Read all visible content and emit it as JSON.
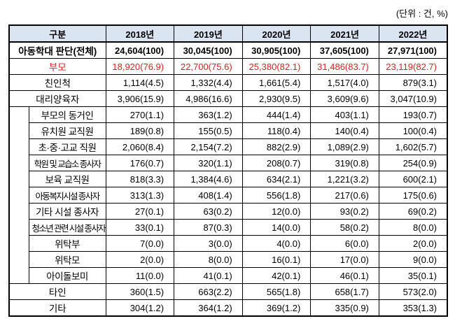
{
  "unit_note": "(단위 : 건, %)",
  "table": {
    "header": [
      "구분",
      "2018년",
      "2019년",
      "2020년",
      "2021년",
      "2022년"
    ],
    "rows": [
      {
        "label": "아동학대 판단(전체)",
        "cells": [
          "24,604(100)",
          "30,045(100)",
          "30,905(100)",
          "37,605(100)",
          "27,971(100)"
        ]
      },
      {
        "label": "부모",
        "cells": [
          "18,920(76.9)",
          "22,700(75.6)",
          "25,380(82.1)",
          "31,486(83.7)",
          "23,119(82.7)"
        ]
      },
      {
        "label": "친인척",
        "cells": [
          "1,114(4.5)",
          "1,332(4.4)",
          "1,661(5.4)",
          "1,517(4.0)",
          "879(3.1)"
        ]
      },
      {
        "label": "대리양육자",
        "cells": [
          "3,906(15.9)",
          "4,986(16.6)",
          "2,930(9.5)",
          "3,609(9.6)",
          "3,047(10.9)"
        ],
        "children": [
          {
            "label": "부모의 동거인",
            "cells": [
              "270(1.1)",
              "363(1.2)",
              "444(1.4)",
              "403(1.1)",
              "193(0.7)"
            ]
          },
          {
            "label": "유치원 교직원",
            "cells": [
              "189(0.8)",
              "155(0.5)",
              "118(0.4)",
              "140(0.4)",
              "100(0.4)"
            ]
          },
          {
            "label": "초·중·고교 직원",
            "cells": [
              "2,060(8.4)",
              "2,154(7.2)",
              "882(2.9)",
              "1,089(2.9)",
              "1,602(5.7)"
            ]
          },
          {
            "label": "학원 및 교습소 종사자",
            "cells": [
              "176(0.7)",
              "320(1.1)",
              "208(0.7)",
              "319(0.8)",
              "254(0.9)"
            ]
          },
          {
            "label": "보육 교직원",
            "cells": [
              "818(3.3)",
              "1,384(4.6)",
              "634(2.1)",
              "1,221(3.2)",
              "600(2.1)"
            ]
          },
          {
            "label": "아동복지시설 종사자",
            "cells": [
              "313(1.3)",
              "408(1.4)",
              "556(1.8)",
              "217(0.6)",
              "175(0.6)"
            ]
          },
          {
            "label": "기타 시설 종사자",
            "cells": [
              "27(0.1)",
              "63(0.2)",
              "12(0.0)",
              "93(0.2)",
              "69(0.2)"
            ]
          },
          {
            "label": "청소년 관련 시설 종사자",
            "cells": [
              "33(0.1)",
              "87(0.3)",
              "14(0.0)",
              "58(0.2)",
              "8(0.0)"
            ]
          },
          {
            "label": "위탁부",
            "cells": [
              "7(0.0)",
              "3(0.0)",
              "4(0.0)",
              "6(0.0)",
              "2(0.0)"
            ]
          },
          {
            "label": "위탁모",
            "cells": [
              "2(0.0)",
              "8(0.0)",
              "16(0.1)",
              "17(0.0)",
              "9(0.0)"
            ]
          },
          {
            "label": "아이돌보미",
            "cells": [
              "11(0.0)",
              "41(0.1)",
              "42(0.1)",
              "46(0.1)",
              "35(0.1)"
            ]
          }
        ]
      },
      {
        "label": "타인",
        "cells": [
          "360(1.5)",
          "663(2.2)",
          "565(1.8)",
          "658(1.7)",
          "573(2.0)"
        ]
      },
      {
        "label": "기타",
        "cells": [
          "304(1.2)",
          "364(1.2)",
          "369(1.2)",
          "335(0.9)",
          "353(1.3)"
        ]
      }
    ]
  }
}
